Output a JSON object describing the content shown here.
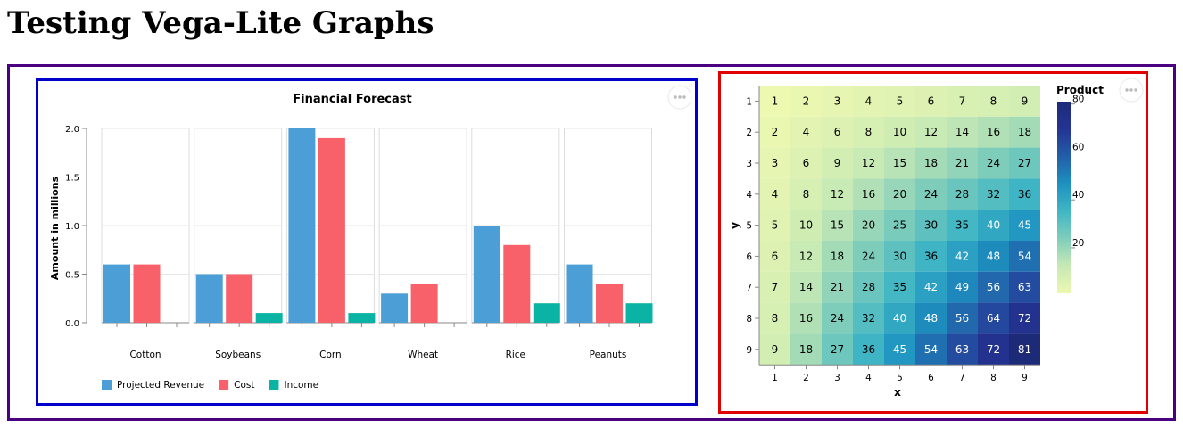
{
  "page": {
    "title": "Testing Vega-Lite Graphs"
  },
  "chart_data": [
    {
      "type": "bar",
      "title": "Financial Forecast",
      "xlabel": "",
      "ylabel": "Amount in millions",
      "ylim": [
        0,
        2.0
      ],
      "yticks": [
        "0.0",
        "0.5",
        "1.0",
        "1.5",
        "2.0"
      ],
      "categories": [
        "Cotton",
        "Soybeans",
        "Corn",
        "Wheat",
        "Rice",
        "Peanuts"
      ],
      "series": [
        {
          "name": "Projected Revenue",
          "color": "#4c9ed6",
          "values": [
            0.6,
            0.5,
            2.0,
            0.3,
            1.0,
            0.6
          ]
        },
        {
          "name": "Cost",
          "color": "#f9616a",
          "values": [
            0.6,
            0.5,
            1.9,
            0.4,
            0.8,
            0.4
          ]
        },
        {
          "name": "Income",
          "color": "#0bb3a5",
          "values": [
            0.0,
            0.1,
            0.1,
            0.0,
            0.2,
            0.2
          ]
        }
      ],
      "legend": "bottom-left",
      "grid": true,
      "faceted": true
    },
    {
      "type": "heatmap",
      "title": "",
      "xlabel": "x",
      "ylabel": "y",
      "x": [
        1,
        2,
        3,
        4,
        5,
        6,
        7,
        8,
        9
      ],
      "y": [
        1,
        2,
        3,
        4,
        5,
        6,
        7,
        8,
        9
      ],
      "value_rule": "x * y",
      "legend_title": "Product",
      "legend_ticks": [
        "20",
        "40",
        "60",
        "80"
      ],
      "color_domain": [
        1,
        81
      ],
      "color_scheme": [
        "#edf8b1",
        "#c7e9b4",
        "#7fcdbb",
        "#41b6c4",
        "#1d91c0",
        "#225ea8",
        "#253494",
        "#1c2a78"
      ],
      "legend": "right"
    }
  ],
  "icons": {
    "menu": "ellipsis-icon"
  }
}
